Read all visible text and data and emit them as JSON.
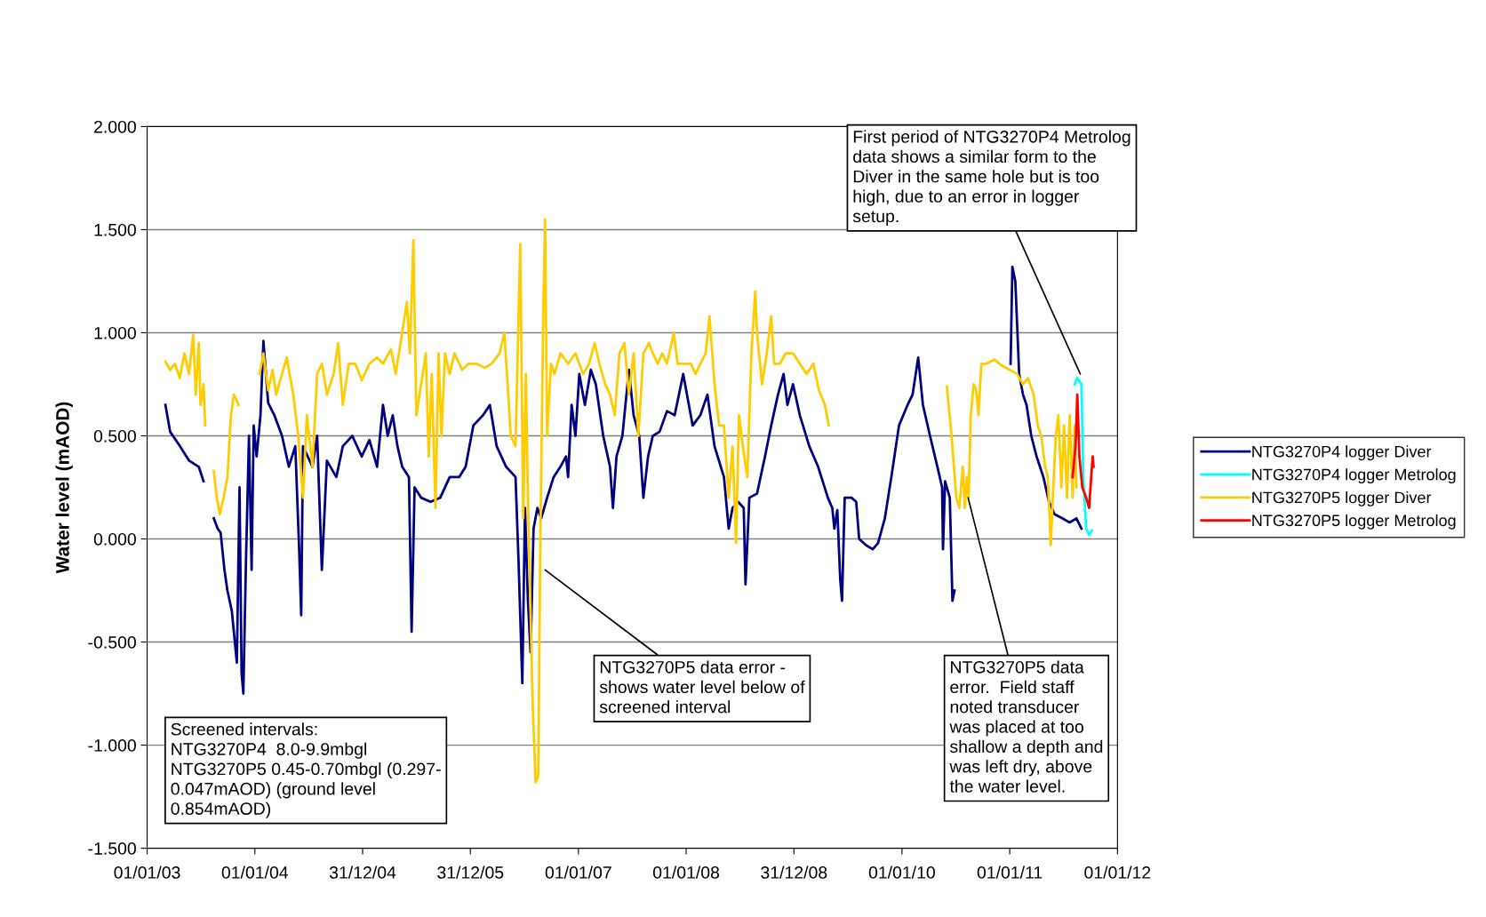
{
  "chart_data": {
    "type": "line",
    "ylabel": "Water level (mAOD)",
    "xlim": [
      "2003-01-01",
      "2012-01-01"
    ],
    "xticks": [
      {
        "value": "2003-01-01",
        "label": "01/01/03"
      },
      {
        "value": "2004-01-01",
        "label": "01/01/04"
      },
      {
        "value": "2004-12-31",
        "label": "31/12/04"
      },
      {
        "value": "2005-12-31",
        "label": "31/12/05"
      },
      {
        "value": "2007-01-01",
        "label": "01/01/07"
      },
      {
        "value": "2008-01-01",
        "label": "01/01/08"
      },
      {
        "value": "2008-12-31",
        "label": "31/12/08"
      },
      {
        "value": "2010-01-01",
        "label": "01/01/10"
      },
      {
        "value": "2011-01-01",
        "label": "01/01/11"
      },
      {
        "value": "2012-01-01",
        "label": "01/01/12"
      }
    ],
    "ylim": [
      -1.5,
      2.0
    ],
    "yticks": [
      {
        "value": -1.5,
        "label": "-1.500"
      },
      {
        "value": -1.0,
        "label": "-1.000"
      },
      {
        "value": -0.5,
        "label": "-0.500"
      },
      {
        "value": 0,
        "label": "0.000"
      },
      {
        "value": 0.5,
        "label": "0.500"
      },
      {
        "value": 1.0,
        "label": "1.000"
      },
      {
        "value": 1.5,
        "label": "1.500"
      },
      {
        "value": 2.0,
        "label": "2.000"
      }
    ],
    "grid": "y",
    "legend": "right",
    "marker": "none",
    "line_style": "solid",
    "series": [
      {
        "name": "NTG3270P4 logger Diver",
        "color": "#000080",
        "x": [
          "2003-03-04",
          "2003-03-20",
          "2003-04-22",
          "2003-05-23",
          "2003-06-25",
          "2003-07-11",
          "2003-07-25",
          "2003-08-15",
          "2003-08-28",
          "2003-09-07",
          "2003-09-20",
          "2003-09-30",
          "2003-10-15",
          "2003-11-01",
          "2003-11-10",
          "2003-11-17",
          "2003-11-23",
          "2003-12-02",
          "2003-12-12",
          "2003-12-21",
          "2003-12-28",
          "2004-01-07",
          "2004-01-20",
          "2004-01-30",
          "2004-02-15",
          "2004-03-07",
          "2004-04-02",
          "2004-04-25",
          "2004-05-17",
          "2004-05-30",
          "2004-06-06",
          "2004-06-12",
          "2004-06-28",
          "2004-07-14",
          "2004-07-30",
          "2004-08-15",
          "2004-09-01",
          "2004-10-03",
          "2004-10-25",
          "2004-11-26",
          "2004-12-28",
          "2005-01-23",
          "2005-02-18",
          "2005-03-10",
          "2005-03-26",
          "2005-04-12",
          "2005-04-28",
          "2005-05-14",
          "2005-06-06",
          "2005-06-15",
          "2005-06-25",
          "2005-07-17",
          "2005-08-18",
          "2005-09-20",
          "2005-10-22",
          "2005-11-23",
          "2005-12-15",
          "2006-01-10",
          "2006-02-12",
          "2006-03-07",
          "2006-03-30",
          "2006-05-01",
          "2006-06-02",
          "2006-06-12",
          "2006-06-25",
          "2006-07-04",
          "2006-07-14",
          "2006-07-23",
          "2006-08-02",
          "2006-08-15",
          "2006-08-28",
          "2006-09-17",
          "2006-10-09",
          "2006-11-01",
          "2006-11-20",
          "2006-11-27",
          "2006-12-09",
          "2006-12-22",
          "2007-01-04",
          "2007-01-23",
          "2007-02-12",
          "2007-03-01",
          "2007-03-26",
          "2007-04-18",
          "2007-04-28",
          "2007-05-10",
          "2007-05-30",
          "2007-06-21",
          "2007-07-07",
          "2007-07-26",
          "2007-08-09",
          "2007-08-25",
          "2007-09-10",
          "2007-10-03",
          "2007-10-28",
          "2007-11-23",
          "2007-12-22",
          "2008-01-23",
          "2008-02-18",
          "2008-03-13",
          "2008-04-06",
          "2008-05-08",
          "2008-05-24",
          "2008-06-06",
          "2008-06-25",
          "2008-07-14",
          "2008-07-20",
          "2008-08-02",
          "2008-08-28",
          "2008-09-24",
          "2008-10-15",
          "2008-11-07",
          "2008-11-26",
          "2008-12-09",
          "2008-12-28",
          "2009-01-20",
          "2009-02-21",
          "2009-03-23",
          "2009-04-25",
          "2009-05-10",
          "2009-05-17",
          "2009-05-27",
          "2009-06-06",
          "2009-06-12",
          "2009-06-21",
          "2009-07-14",
          "2009-07-30",
          "2009-08-09",
          "2009-09-01",
          "2009-09-24",
          "2009-10-12",
          "2009-11-04",
          "2009-11-26",
          "2009-12-22",
          "2010-01-20",
          "2010-02-06",
          "2010-02-25",
          "2010-03-13",
          "2010-04-06",
          "2010-05-01",
          "2010-05-17",
          "2010-05-20",
          "2010-05-27",
          "2010-06-12",
          "2010-06-21",
          "2010-06-28",
          "2010-10-01",
          "2011-01-04",
          "2011-01-10",
          "2011-01-20",
          "2011-02-02",
          "2011-02-15",
          "2011-02-27",
          "2011-03-15",
          "2011-04-02",
          "2011-04-25",
          "2011-05-14",
          "2011-06-02",
          "2011-06-28",
          "2011-07-23",
          "2011-08-15",
          "2011-09-01"
        ],
        "values": [
          0.65,
          0.52,
          0.45,
          0.38,
          0.35,
          0.28,
          null,
          0.1,
          0.05,
          0.03,
          -0.15,
          -0.25,
          -0.35,
          -0.6,
          0.25,
          -0.65,
          -0.75,
          -0.1,
          0.5,
          -0.15,
          0.55,
          0.4,
          0.6,
          0.96,
          0.66,
          0.6,
          0.5,
          0.35,
          0.45,
          -0.05,
          -0.37,
          0.45,
          0.4,
          0.35,
          0.5,
          -0.15,
          0.38,
          0.3,
          0.45,
          0.5,
          0.4,
          0.48,
          0.35,
          0.65,
          0.5,
          0.6,
          0.45,
          0.35,
          0.3,
          -0.45,
          0.25,
          0.2,
          0.18,
          0.2,
          0.3,
          0.3,
          0.35,
          0.55,
          0.6,
          0.65,
          0.45,
          0.35,
          0.3,
          -0.1,
          -0.7,
          0.15,
          -0.3,
          -0.55,
          0.05,
          0.15,
          0.1,
          0.2,
          0.3,
          0.35,
          0.4,
          0.3,
          0.65,
          0.5,
          0.8,
          0.65,
          0.82,
          0.75,
          0.5,
          0.35,
          0.15,
          0.4,
          0.5,
          0.82,
          0.6,
          0.5,
          0.2,
          0.4,
          0.5,
          0.52,
          0.62,
          0.6,
          0.8,
          0.55,
          0.6,
          0.7,
          0.45,
          0.3,
          0.05,
          0.15,
          0.18,
          0.15,
          -0.22,
          0.2,
          0.22,
          0.4,
          0.55,
          0.7,
          0.8,
          0.65,
          0.75,
          0.6,
          0.45,
          0.35,
          0.2,
          0.15,
          0.05,
          0.14,
          -0.2,
          -0.3,
          0.2,
          0.2,
          0.18,
          0.0,
          -0.03,
          -0.05,
          -0.02,
          0.1,
          0.3,
          0.55,
          0.65,
          0.7,
          0.88,
          0.65,
          0.5,
          0.35,
          0.25,
          -0.05,
          0.28,
          0.2,
          -0.3,
          -0.25,
          null,
          0.85,
          1.32,
          1.25,
          0.8,
          0.7,
          0.65,
          0.5,
          0.4,
          0.3,
          0.18,
          0.12,
          0.1,
          0.08,
          0.1,
          0.05
        ]
      },
      {
        "name": "NTG3270P4 logger Metrolog",
        "color": "#00ffff",
        "x": [
          "2011-08-09",
          "2011-08-18",
          "2011-09-01",
          "2011-09-07",
          "2011-09-17",
          "2011-09-27",
          "2011-10-06"
        ],
        "values": [
          0.75,
          0.78,
          0.75,
          0.3,
          0.05,
          0.02,
          0.04
        ]
      },
      {
        "name": "NTG3270P5 logger Diver",
        "color": "#ffcc00",
        "x": [
          "2003-03-04",
          "2003-03-20",
          "2003-04-05",
          "2003-04-22",
          "2003-05-07",
          "2003-05-23",
          "2003-06-06",
          "2003-06-15",
          "2003-06-25",
          "2003-07-01",
          "2003-07-11",
          "2003-07-17",
          "2003-07-25",
          "2003-08-15",
          "2003-08-25",
          "2003-09-04",
          "2003-09-17",
          "2003-09-30",
          "2003-10-12",
          "2003-10-22",
          "2003-11-07",
          "2003-12-15",
          "2004-01-17",
          "2004-01-30",
          "2004-02-15",
          "2004-03-01",
          "2004-03-13",
          "2004-04-02",
          "2004-04-18",
          "2004-05-10",
          "2004-05-27",
          "2004-06-12",
          "2004-06-25",
          "2004-07-14",
          "2004-07-30",
          "2004-08-15",
          "2004-09-01",
          "2004-09-24",
          "2004-10-09",
          "2004-10-25",
          "2004-11-14",
          "2004-12-06",
          "2004-12-28",
          "2005-01-23",
          "2005-02-18",
          "2005-03-10",
          "2005-04-06",
          "2005-04-22",
          "2005-05-14",
          "2005-05-30",
          "2005-06-09",
          "2005-06-21",
          "2005-07-01",
          "2005-07-17",
          "2005-08-02",
          "2005-08-12",
          "2005-08-22",
          "2005-09-04",
          "2005-09-14",
          "2005-09-24",
          "2005-10-06",
          "2005-10-22",
          "2005-11-07",
          "2005-12-03",
          "2005-12-25",
          "2006-01-20",
          "2006-02-18",
          "2006-03-13",
          "2006-04-09",
          "2006-04-25",
          "2006-05-04",
          "2006-05-17",
          "2006-06-02",
          "2006-06-18",
          "2006-06-28",
          "2006-07-07",
          "2006-07-14",
          "2006-07-30",
          "2006-08-09",
          "2006-08-18",
          "2006-08-25",
          "2006-09-04",
          "2006-09-10",
          "2006-09-17",
          "2006-09-30",
          "2006-10-12",
          "2006-11-01",
          "2006-11-27",
          "2006-12-22",
          "2007-01-17",
          "2007-02-06",
          "2007-02-25",
          "2007-03-13",
          "2007-04-02",
          "2007-04-18",
          "2007-05-04",
          "2007-05-20",
          "2007-06-06",
          "2007-06-21",
          "2007-07-07",
          "2007-07-23",
          "2007-08-09",
          "2007-08-28",
          "2007-09-10",
          "2007-09-27",
          "2007-10-12",
          "2007-10-28",
          "2007-11-20",
          "2007-12-03",
          "2007-12-22",
          "2008-01-17",
          "2008-02-02",
          "2008-02-18",
          "2008-03-07",
          "2008-03-20",
          "2008-04-06",
          "2008-04-22",
          "2008-05-08",
          "2008-05-24",
          "2008-06-06",
          "2008-06-18",
          "2008-06-28",
          "2008-07-11",
          "2008-07-26",
          "2008-08-09",
          "2008-08-22",
          "2008-08-28",
          "2008-09-14",
          "2008-09-30",
          "2008-10-15",
          "2008-10-25",
          "2008-11-14",
          "2008-12-03",
          "2008-12-28",
          "2009-01-20",
          "2009-02-12",
          "2009-03-07",
          "2009-03-26",
          "2009-04-15",
          "2009-04-28",
          "2009-10-01",
          "2010-06-02",
          "2010-06-18",
          "2010-07-04",
          "2010-07-14",
          "2010-07-26",
          "2010-08-02",
          "2010-08-09",
          "2010-08-15",
          "2010-08-22",
          "2010-09-01",
          "2010-09-10",
          "2010-09-17",
          "2010-09-27",
          "2010-10-15",
          "2010-11-10",
          "2010-12-06",
          "2011-01-01",
          "2011-01-26",
          "2011-02-15",
          "2011-03-04",
          "2011-03-23",
          "2011-04-06",
          "2011-04-18",
          "2011-05-01",
          "2011-05-10",
          "2011-05-20",
          "2011-05-27",
          "2011-06-06",
          "2011-06-15",
          "2011-06-25",
          "2011-07-04",
          "2011-07-14",
          "2011-07-23",
          "2011-08-02",
          "2011-08-09",
          "2011-08-15"
        ],
        "values": [
          0.86,
          0.82,
          0.85,
          0.78,
          0.9,
          0.8,
          0.99,
          0.7,
          0.95,
          0.65,
          0.75,
          0.55,
          null,
          0.33,
          0.2,
          0.12,
          0.2,
          0.3,
          0.6,
          0.7,
          0.65,
          null,
          0.8,
          0.9,
          0.72,
          0.82,
          0.7,
          0.8,
          0.88,
          0.7,
          0.5,
          0.2,
          0.6,
          0.35,
          0.8,
          0.85,
          0.7,
          0.8,
          0.95,
          0.65,
          0.85,
          0.85,
          0.77,
          0.85,
          0.88,
          0.85,
          0.92,
          0.8,
          1.0,
          1.15,
          0.9,
          1.45,
          0.6,
          0.75,
          0.9,
          0.4,
          0.8,
          0.15,
          0.9,
          0.5,
          0.9,
          0.8,
          0.9,
          0.82,
          0.85,
          0.85,
          0.83,
          0.85,
          0.9,
          1.0,
          0.8,
          0.5,
          0.45,
          1.43,
          0.1,
          0.8,
          0.2,
          -0.8,
          -1.18,
          -1.15,
          0.0,
          1.1,
          1.55,
          0.5,
          0.85,
          0.8,
          0.9,
          0.85,
          0.9,
          0.8,
          0.85,
          0.95,
          0.85,
          0.75,
          0.7,
          0.6,
          0.9,
          0.95,
          0.7,
          0.9,
          0.5,
          0.9,
          0.95,
          0.9,
          0.85,
          0.9,
          0.85,
          1.0,
          0.85,
          0.85,
          0.85,
          0.8,
          0.85,
          0.9,
          1.08,
          0.75,
          0.55,
          0.55,
          0.2,
          0.45,
          -0.02,
          0.6,
          0.45,
          0.3,
          0.9,
          1.2,
          1.0,
          0.75,
          0.9,
          1.08,
          0.85,
          0.85,
          0.9,
          0.9,
          0.85,
          0.8,
          0.85,
          0.72,
          0.65,
          0.55,
          null,
          0.74,
          0.5,
          0.2,
          0.15,
          0.35,
          0.15,
          0.3,
          0.2,
          0.6,
          0.75,
          0.72,
          0.6,
          0.85,
          0.85,
          0.87,
          0.84,
          0.82,
          0.8,
          0.75,
          0.78,
          0.7,
          0.55,
          0.5,
          0.35,
          0.3,
          -0.03,
          0.2,
          0.5,
          0.6,
          0.25,
          0.55,
          0.2,
          0.6,
          0.2,
          0.55,
          0.25
        ]
      },
      {
        "name": "NTG3270P5 logger Metrolog",
        "color": "#ff0000",
        "x": [
          "2011-08-02",
          "2011-08-12",
          "2011-08-18",
          "2011-08-25",
          "2011-09-04",
          "2011-09-17",
          "2011-09-27",
          "2011-10-03",
          "2011-10-09",
          "2011-10-12"
        ],
        "values": [
          0.3,
          0.45,
          0.7,
          0.4,
          0.25,
          0.2,
          0.15,
          0.28,
          0.4,
          0.35
        ]
      }
    ],
    "annotations": [
      {
        "text": "First period of NTG3270P4 Metrolog\ndata shows a similar form to the\nDiver in the same hole but is too\nhigh, due to an error in logger\nsetup.",
        "x": "2011-08-28",
        "y": 0.8
      },
      {
        "text": "NTG3270P5 data error -\nshows water level below of\nscreened interval",
        "x": "2006-09-10",
        "y": -0.15
      },
      {
        "text": "NTG3270P5 data\nerror.  Field staff\nnoted transducer\nwas placed at too\nshallow a depth and\nwas left dry, above\nthe water level.",
        "x": "2010-08-13",
        "y": 0.2
      },
      "Screened intervals:\nNTG3270P4  8.0-9.9mbgl\nNTG3270P5 0.45-0.70mbgl (0.297-\n0.047mAOD) (ground level\n0.854mAOD)"
    ]
  }
}
